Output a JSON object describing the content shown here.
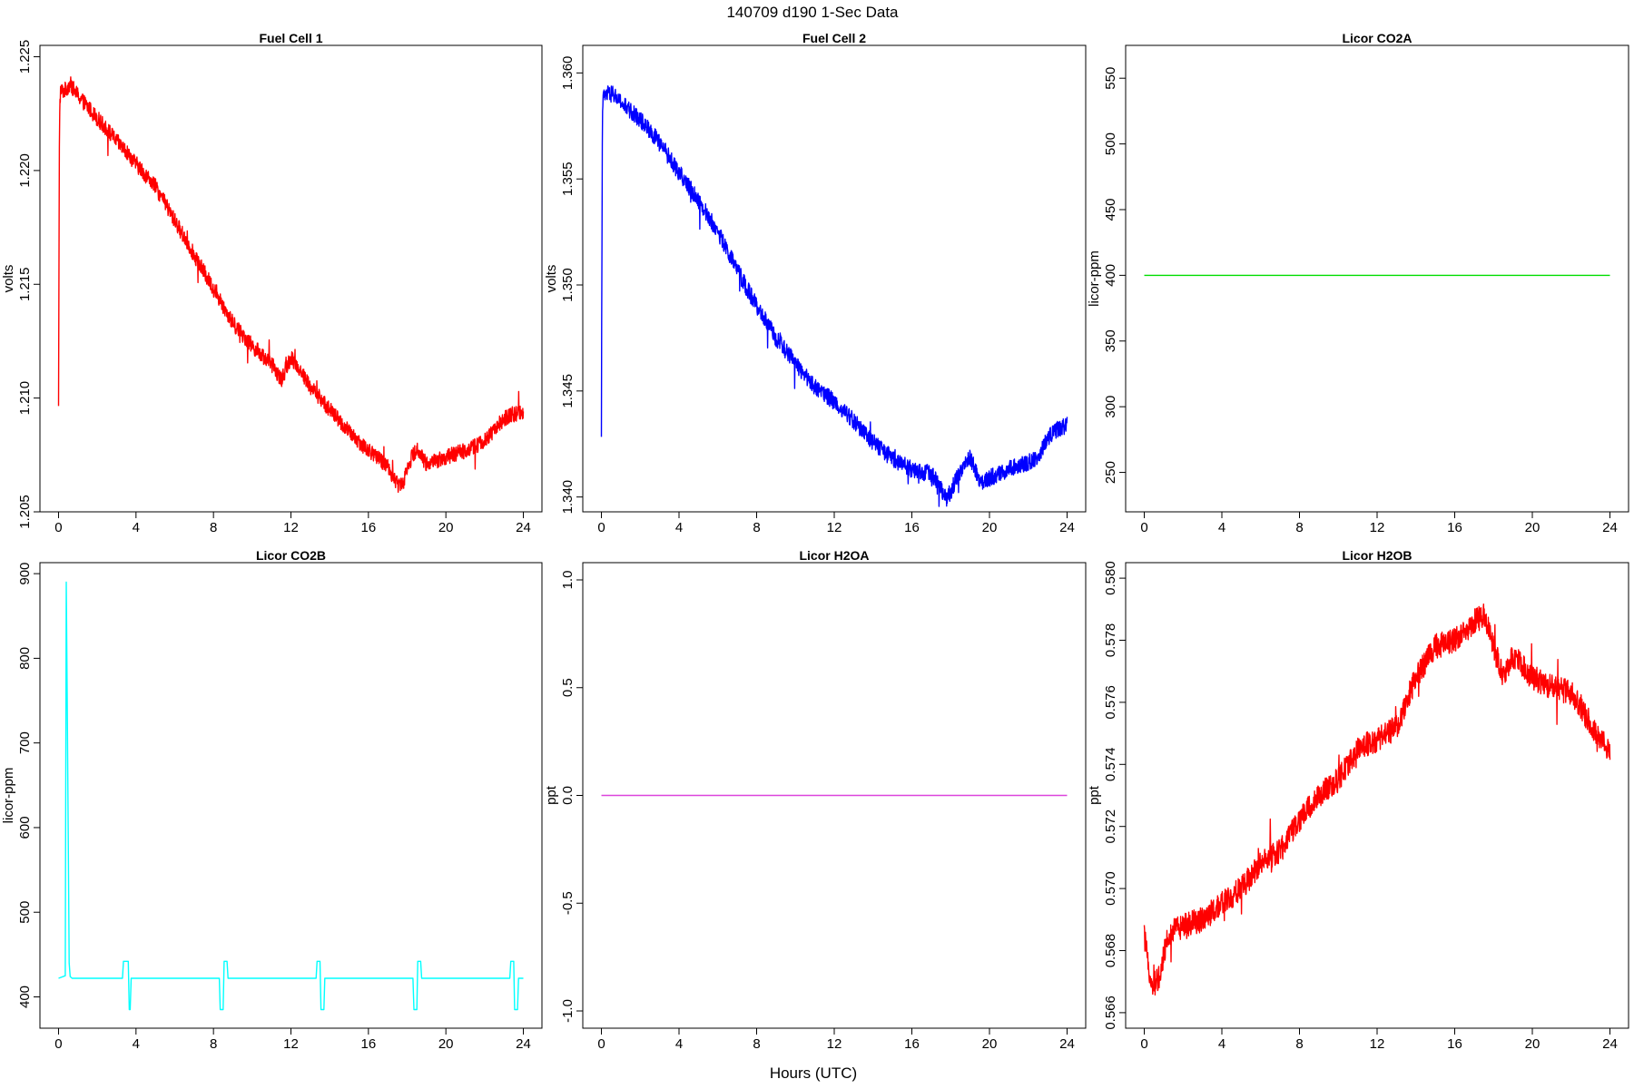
{
  "figure": {
    "title": "140709   d190   1-Sec Data",
    "xlabel": "Hours (UTC)"
  },
  "chart_data": [
    {
      "type": "line",
      "title": "Fuel Cell 1",
      "ylabel": "volts",
      "color": "#ff0000",
      "xlim": [
        0,
        24
      ],
      "ylim": [
        1.205,
        1.2255
      ],
      "xticks": [
        0,
        4,
        8,
        12,
        16,
        20,
        24
      ],
      "xtick_labels": [
        "0",
        "4",
        "8",
        "12",
        "16",
        "20",
        "24"
      ],
      "yticks": [
        1.205,
        1.21,
        1.215,
        1.22,
        1.225
      ],
      "ytick_labels": [
        "1.205",
        "1.210",
        "1.215",
        "1.220",
        "1.225"
      ],
      "noise": 0.00035,
      "x": [
        0,
        0.05,
        0.1,
        0.3,
        0.6,
        1.0,
        1.5,
        2.0,
        2.5,
        3.0,
        3.5,
        4.0,
        5.0,
        6.0,
        7.0,
        8.0,
        9.0,
        10.0,
        11.0,
        11.5,
        12.0,
        12.5,
        13.0,
        14.0,
        15.0,
        16.0,
        17.0,
        17.5,
        17.8,
        18.0,
        18.5,
        19.0,
        20.0,
        21.0,
        22.0,
        23.0,
        23.5,
        24.0
      ],
      "y": [
        1.2095,
        1.2225,
        1.2235,
        1.2235,
        1.2238,
        1.2233,
        1.2228,
        1.2223,
        1.2218,
        1.2213,
        1.2208,
        1.2203,
        1.2193,
        1.2178,
        1.2163,
        1.2148,
        1.2133,
        1.2123,
        1.2115,
        1.2108,
        1.2118,
        1.2112,
        1.2105,
        1.2095,
        1.2085,
        1.2077,
        1.207,
        1.2062,
        1.2063,
        1.207,
        1.2078,
        1.2071,
        1.2074,
        1.2077,
        1.2081,
        1.2091,
        1.2093,
        1.2094
      ]
    },
    {
      "type": "line",
      "title": "Fuel Cell 2",
      "ylabel": "volts",
      "color": "#0000ff",
      "xlim": [
        0,
        24
      ],
      "ylim": [
        1.3393,
        1.3613
      ],
      "xticks": [
        0,
        4,
        8,
        12,
        16,
        20,
        24
      ],
      "xtick_labels": [
        "0",
        "4",
        "8",
        "12",
        "16",
        "20",
        "24"
      ],
      "yticks": [
        1.34,
        1.345,
        1.35,
        1.355,
        1.36
      ],
      "ytick_labels": [
        "1.340",
        "1.345",
        "1.350",
        "1.355",
        "1.360"
      ],
      "noise": 0.0004,
      "x": [
        0,
        0.05,
        0.1,
        0.3,
        0.6,
        1.0,
        1.5,
        2.0,
        2.5,
        3.0,
        3.5,
        4.0,
        5.0,
        6.0,
        7.0,
        8.0,
        9.0,
        10.0,
        11.0,
        12.0,
        13.0,
        14.0,
        15.0,
        16.0,
        17.0,
        17.5,
        17.8,
        18.5,
        19.0,
        19.5,
        20.5,
        21.5,
        22.5,
        23.0,
        23.5,
        24.0
      ],
      "y": [
        1.3433,
        1.3585,
        1.3588,
        1.359,
        1.359,
        1.3586,
        1.3582,
        1.3578,
        1.3573,
        1.3567,
        1.356,
        1.3553,
        1.354,
        1.3525,
        1.3507,
        1.349,
        1.3475,
        1.3463,
        1.3452,
        1.3445,
        1.3436,
        1.3426,
        1.3418,
        1.3413,
        1.3411,
        1.3404,
        1.3399,
        1.3412,
        1.3419,
        1.3407,
        1.3411,
        1.3415,
        1.3418,
        1.3428,
        1.3432,
        1.3434
      ]
    },
    {
      "type": "line",
      "title": "Licor CO2A",
      "ylabel": "licor-ppm",
      "color": "#00dd00",
      "xlim": [
        0,
        24
      ],
      "ylim": [
        220,
        575
      ],
      "xticks": [
        0,
        4,
        8,
        12,
        16,
        20,
        24
      ],
      "xtick_labels": [
        "0",
        "4",
        "8",
        "12",
        "16",
        "20",
        "24"
      ],
      "yticks": [
        250,
        300,
        350,
        400,
        450,
        500,
        550
      ],
      "ytick_labels": [
        "250",
        "300",
        "350",
        "400",
        "450",
        "500",
        "550"
      ],
      "noise": 0,
      "x": [
        0,
        24
      ],
      "y": [
        400,
        400
      ]
    },
    {
      "type": "line",
      "title": "Licor CO2B",
      "ylabel": "licor-ppm",
      "color": "#00ffff",
      "xlim": [
        0,
        24
      ],
      "ylim": [
        363,
        913
      ],
      "xticks": [
        0,
        4,
        8,
        12,
        16,
        20,
        24
      ],
      "xtick_labels": [
        "0",
        "4",
        "8",
        "12",
        "16",
        "20",
        "24"
      ],
      "yticks": [
        400,
        500,
        600,
        700,
        800,
        900
      ],
      "ytick_labels": [
        "400",
        "500",
        "600",
        "700",
        "800",
        "900"
      ],
      "noise": 0,
      "x": [
        0,
        0.35,
        0.4,
        0.45,
        0.5,
        0.55,
        0.6,
        0.7,
        3.3,
        3.35,
        3.6,
        3.65,
        3.7,
        3.75,
        4.0,
        8.3,
        8.35,
        8.5,
        8.55,
        8.7,
        8.75,
        13.3,
        13.35,
        13.5,
        13.55,
        13.7,
        13.75,
        18.3,
        18.35,
        18.5,
        18.55,
        18.7,
        18.75,
        23.3,
        23.35,
        23.5,
        23.55,
        23.7,
        23.75,
        24.0
      ],
      "y": [
        422,
        425,
        890,
        745,
        600,
        440,
        424,
        422,
        422,
        442,
        442,
        385,
        385,
        422,
        422,
        422,
        385,
        385,
        442,
        442,
        422,
        422,
        442,
        442,
        385,
        385,
        422,
        422,
        385,
        385,
        442,
        442,
        422,
        422,
        442,
        442,
        385,
        385,
        422,
        422
      ]
    },
    {
      "type": "line",
      "title": "Licor H2OA",
      "ylabel": "ppt",
      "color": "#dd44dd",
      "xlim": [
        0,
        24
      ],
      "ylim": [
        -1.08,
        1.08
      ],
      "xticks": [
        0,
        4,
        8,
        12,
        16,
        20,
        24
      ],
      "xtick_labels": [
        "0",
        "4",
        "8",
        "12",
        "16",
        "20",
        "24"
      ],
      "yticks": [
        -1.0,
        -0.5,
        0.0,
        0.5,
        1.0
      ],
      "ytick_labels": [
        "-1.0",
        "-0.5",
        "0.0",
        "0.5",
        "1.0"
      ],
      "noise": 0,
      "x": [
        0,
        24
      ],
      "y": [
        0,
        0
      ]
    },
    {
      "type": "line",
      "title": "Licor H2OB",
      "ylabel": "ppt",
      "color": "#ff0000",
      "xlim": [
        0,
        24
      ],
      "ylim": [
        0.5655,
        0.5805
      ],
      "xticks": [
        0,
        4,
        8,
        12,
        16,
        20,
        24
      ],
      "xtick_labels": [
        "0",
        "4",
        "8",
        "12",
        "16",
        "20",
        "24"
      ],
      "yticks": [
        0.566,
        0.568,
        0.57,
        0.572,
        0.574,
        0.576,
        0.578,
        0.58
      ],
      "ytick_labels": [
        "0.566",
        "0.568",
        "0.570",
        "0.572",
        "0.574",
        "0.576",
        "0.578",
        "0.580"
      ],
      "noise": 0.0004,
      "x": [
        0,
        0.1,
        0.4,
        0.8,
        1.2,
        2.0,
        3.0,
        4.0,
        5.0,
        6.0,
        7.0,
        8.0,
        9.0,
        10.0,
        11.0,
        12.0,
        13.0,
        14.0,
        15.0,
        16.0,
        17.0,
        17.5,
        18.0,
        18.5,
        19.0,
        20.0,
        21.0,
        22.0,
        23.0,
        23.5,
        24.0
      ],
      "y": [
        0.5685,
        0.568,
        0.5668,
        0.5672,
        0.5685,
        0.5688,
        0.569,
        0.5695,
        0.57,
        0.5708,
        0.5712,
        0.5722,
        0.573,
        0.5735,
        0.5745,
        0.5748,
        0.5752,
        0.5768,
        0.5778,
        0.578,
        0.5786,
        0.5788,
        0.5778,
        0.5768,
        0.5775,
        0.5768,
        0.5765,
        0.5763,
        0.5753,
        0.5748,
        0.5745
      ]
    }
  ]
}
